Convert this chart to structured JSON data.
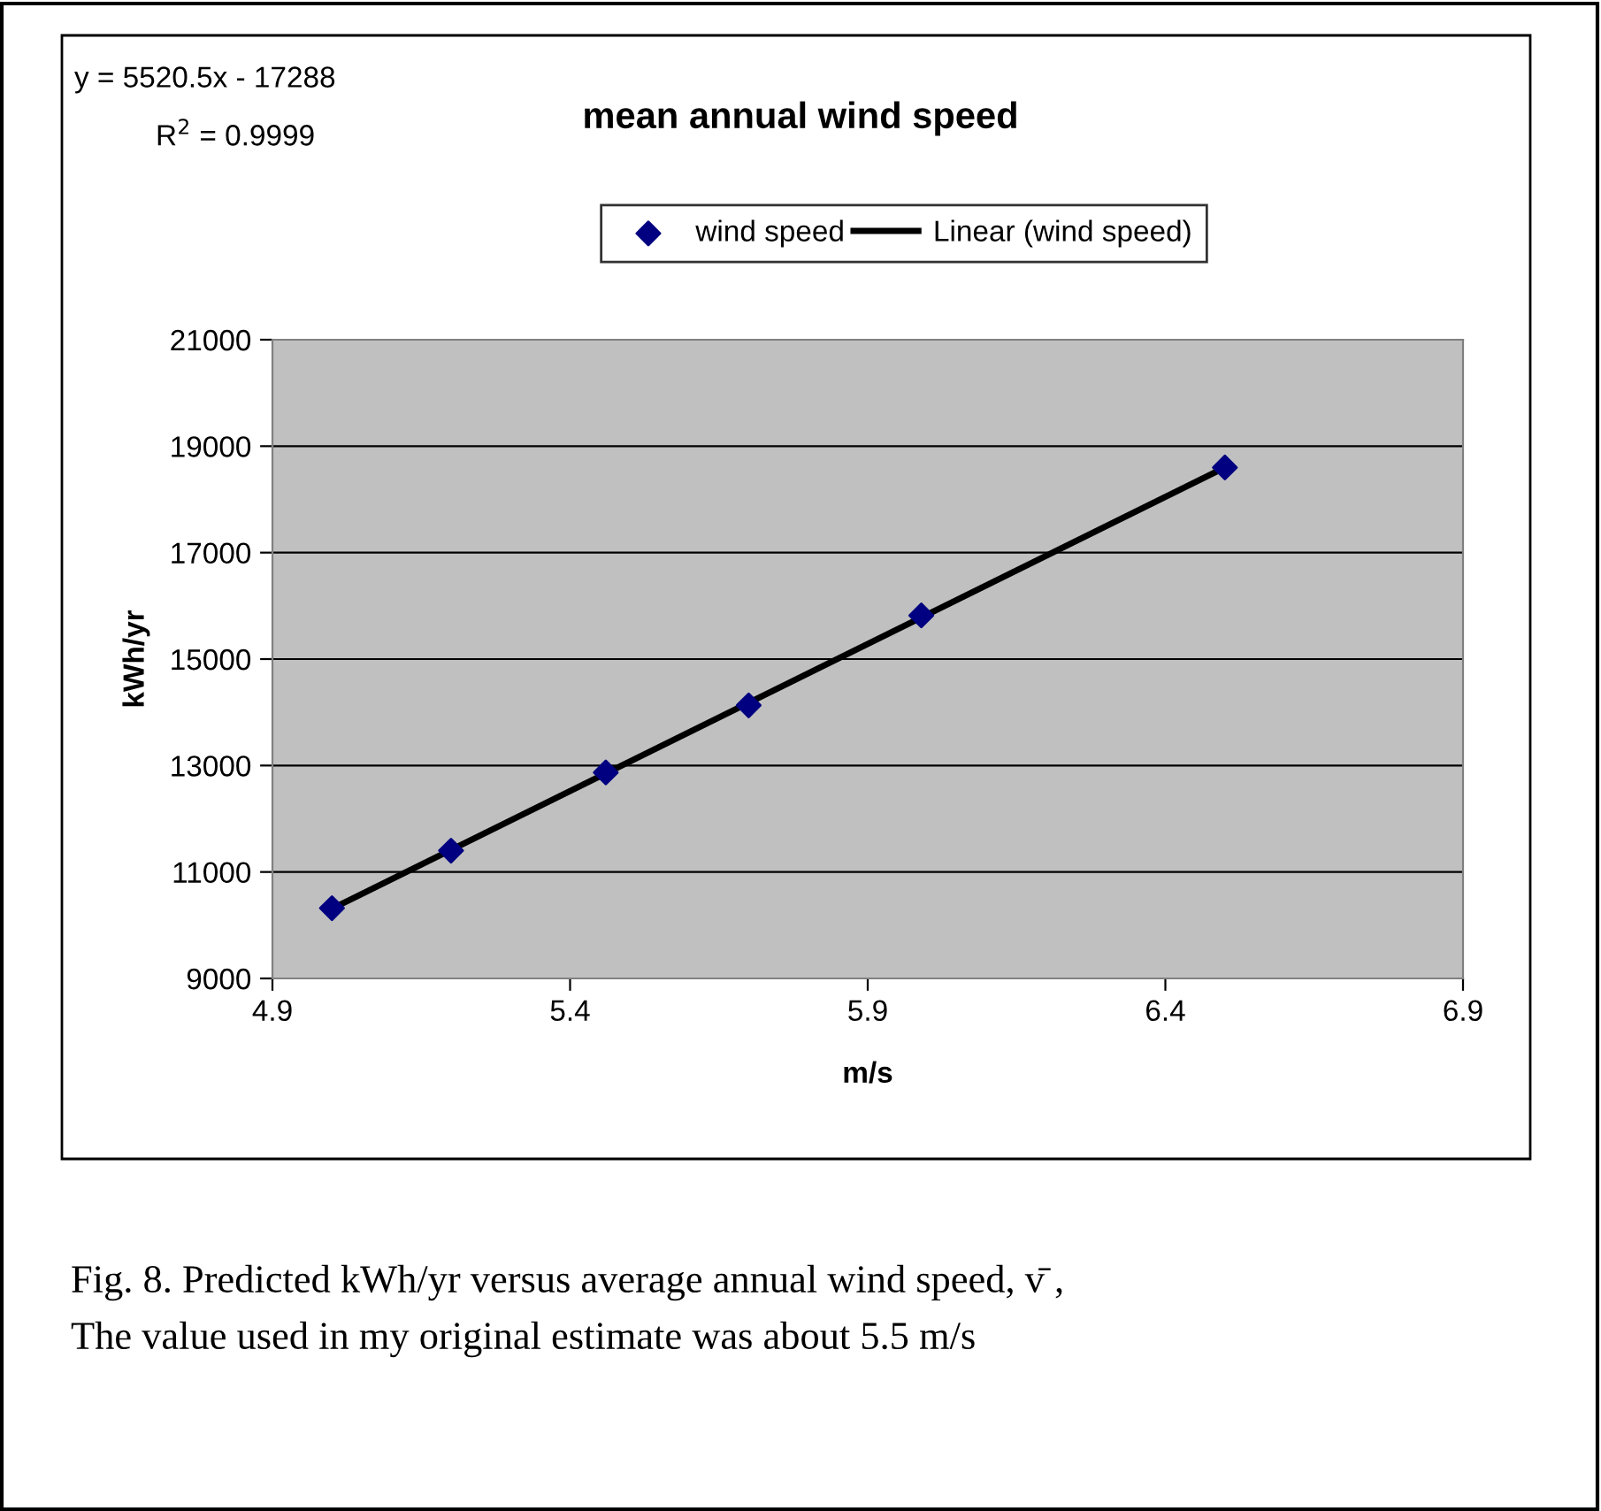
{
  "chart_data": {
    "type": "scatter",
    "title": "mean annual wind speed",
    "xlabel": "m/s",
    "ylabel": "kWh/yr",
    "series": [
      {
        "name": "wind speed",
        "color": "#000080",
        "marker": "diamond",
        "x": [
          5.0,
          5.2,
          5.46,
          5.7,
          5.99,
          6.5
        ],
        "values": [
          10320,
          11400,
          12870,
          14130,
          15820,
          18600
        ]
      },
      {
        "name": "Linear (wind speed)",
        "type": "line",
        "color": "#000000",
        "line_style": "solid",
        "x": [
          5.0,
          6.5
        ],
        "values": [
          10310,
          18600
        ]
      }
    ],
    "xlim": [
      4.9,
      6.9
    ],
    "xticks": [
      4.9,
      5.4,
      5.9,
      6.4,
      6.9
    ],
    "ylim": [
      9000,
      21000
    ],
    "yticks": [
      9000,
      11000,
      13000,
      15000,
      17000,
      19000,
      21000
    ],
    "grid": "y",
    "legend": "top",
    "annotations": [
      "y = 5520.5x - 17288",
      "R$^{2}$ = 0.9999",
      "Fig. 8. Predicted kWh/yr versus average annual wind speed, v̄ ,",
      "The value used in my original estimate was about 5.5 m/s"
    ]
  }
}
